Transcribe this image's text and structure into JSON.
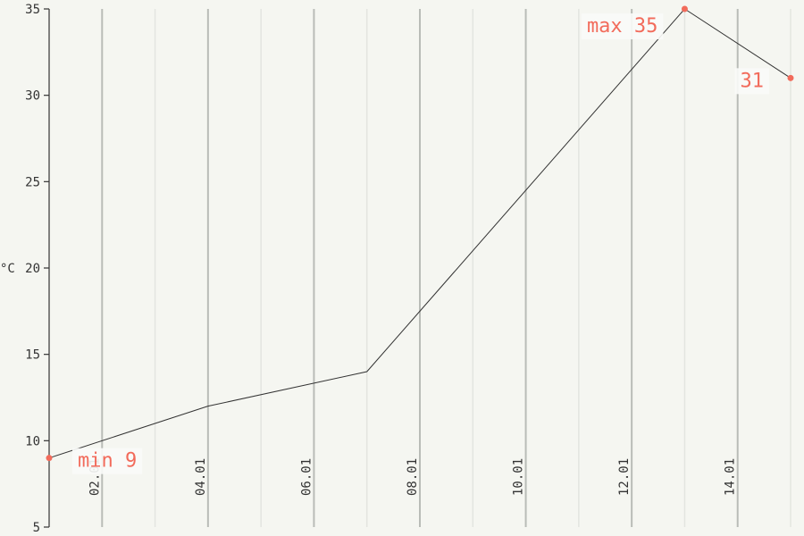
{
  "chart_data": {
    "type": "line",
    "x": [
      "01.01",
      "04.01",
      "07.01",
      "13.01",
      "15.01"
    ],
    "values": [
      9,
      12,
      14,
      35,
      31
    ],
    "xtick_labels": [
      "02.01",
      "04.01",
      "06.01",
      "08.01",
      "10.01",
      "12.01",
      "14.01"
    ],
    "yticks": [
      5,
      10,
      15,
      20,
      25,
      30,
      35
    ],
    "ylabel": "°C",
    "xlim": [
      "01.01",
      "15.01"
    ],
    "ylim": [
      5,
      35
    ],
    "grid": "vertical",
    "annotations": [
      {
        "text": "min 9",
        "x": "01.01",
        "y": 9
      },
      {
        "text": "max 35",
        "x": "13.01",
        "y": 35
      },
      {
        "text": "31",
        "x": "15.01",
        "y": 31
      }
    ],
    "colors": {
      "line": "#333333",
      "marker": "#f26b5b",
      "major_grid": "#b9bcb7",
      "minor_grid": "#e3e5e0",
      "axis": "#333333",
      "background": "#f5f6f1"
    }
  }
}
